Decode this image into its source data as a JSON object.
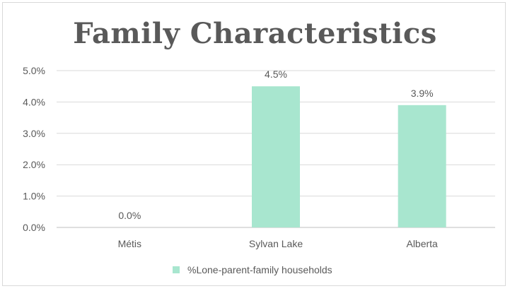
{
  "chart_data": {
    "type": "bar",
    "title": "Family Characteristics",
    "categories": [
      "Métis",
      "Sylvan Lake",
      "Alberta"
    ],
    "series": [
      {
        "name": "%Lone-parent-family households",
        "values": [
          0.0,
          4.5,
          3.9
        ],
        "color": "#a8e6cf"
      }
    ],
    "data_labels": [
      "0.0%",
      "4.5%",
      "3.9%"
    ],
    "y_ticks": [
      "0.0%",
      "1.0%",
      "2.0%",
      "3.0%",
      "4.0%",
      "5.0%"
    ],
    "ylim": [
      0,
      5
    ],
    "grid": true,
    "legend_position": "bottom",
    "gridline_color": "#d9d9d9",
    "axis_line_color": "#bfbfbf",
    "text_color": "#595959"
  }
}
